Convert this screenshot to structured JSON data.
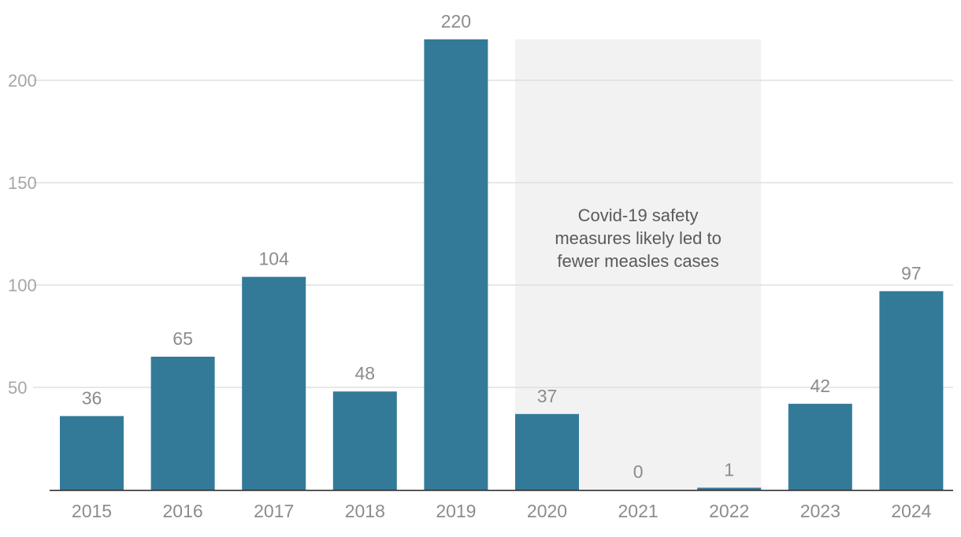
{
  "chart_data": {
    "type": "bar",
    "categories": [
      "2015",
      "2016",
      "2017",
      "2018",
      "2019",
      "2020",
      "2021",
      "2022",
      "2023",
      "2024"
    ],
    "values": [
      36,
      65,
      104,
      48,
      220,
      37,
      0,
      1,
      42,
      97
    ],
    "data_labels": [
      "36",
      "65",
      "104",
      "48",
      "220",
      "37",
      "0",
      "1",
      "42",
      "97"
    ],
    "yticks": [
      50,
      100,
      150,
      200
    ],
    "ytick_labels": [
      "50",
      "100",
      "150",
      "200"
    ],
    "ylim": [
      0,
      220
    ],
    "grid": true,
    "bar_color": "#337a99",
    "annotation": {
      "lines": [
        "Covid-19 safety",
        "measures likely led to",
        "fewer measles cases"
      ],
      "span": [
        "2020",
        "2022"
      ],
      "fill_color": "#f2f2f2"
    }
  }
}
